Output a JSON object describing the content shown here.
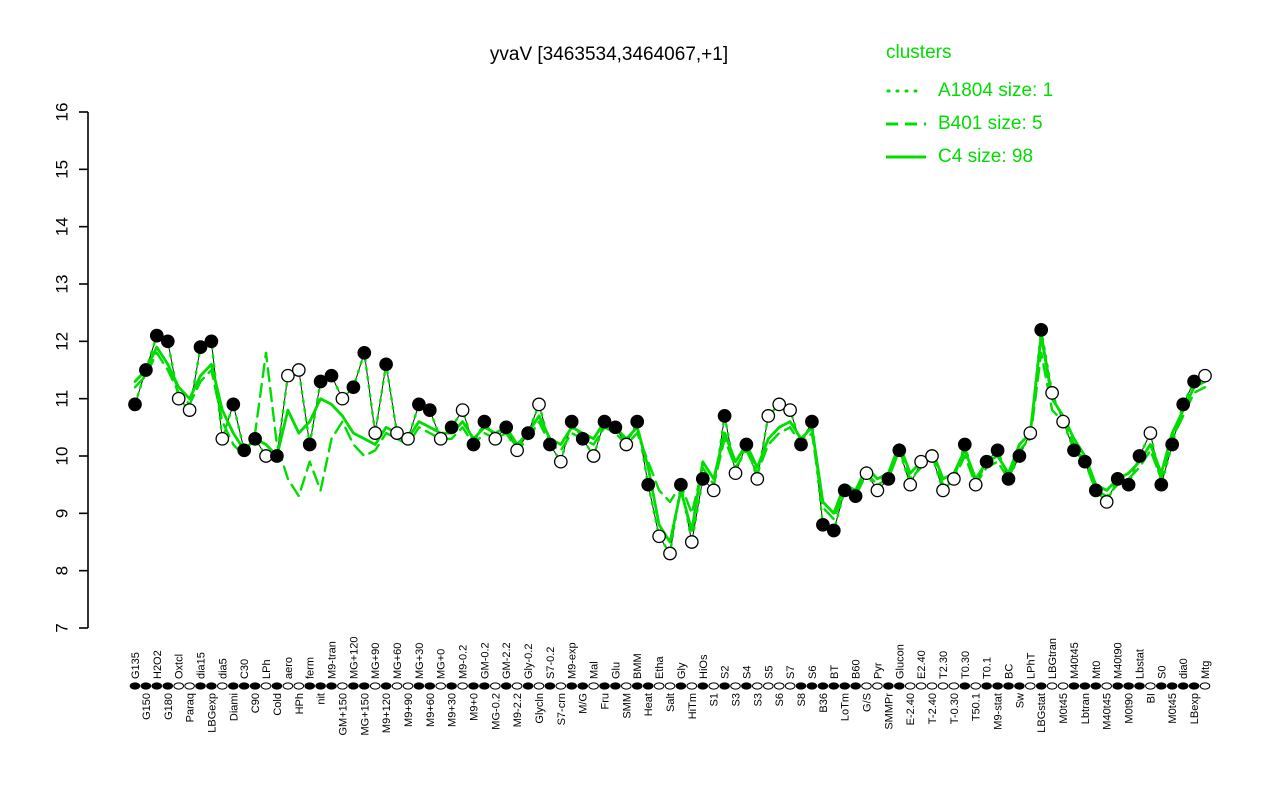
{
  "title": "yvaV [3463534,3464067,+1]",
  "legend": {
    "title": "clusters",
    "entries": [
      {
        "label": "A1804 size: 1",
        "style": "dotted"
      },
      {
        "label": "B401 size: 5",
        "style": "dashed"
      },
      {
        "label": "C4 size: 98",
        "style": "solid"
      }
    ]
  },
  "colors": {
    "green": "#00DD00",
    "point_filled": "#000000",
    "point_open": "#FFFFFF",
    "profile_line": "#161616"
  },
  "chart_data": {
    "type": "line",
    "title": "yvaV [3463534,3464067,+1]",
    "xlabel": "",
    "ylabel": "",
    "ylim": [
      7,
      16
    ],
    "yticks": [
      7,
      8,
      9,
      10,
      11,
      12,
      13,
      14,
      15,
      16
    ],
    "grid": false,
    "legend_position": "topright",
    "categories": [
      "G135",
      "G150",
      "H2O2",
      "G180",
      "Oxtcl",
      "Paraq",
      "dia15",
      "LBGexp",
      "dia5",
      "Diami",
      "C30",
      "C90",
      "LPh",
      "Cold",
      "aero",
      "HPh",
      "ferm",
      "nit",
      "M9-tran",
      "GM+150",
      "MG+120",
      "MG+150",
      "MG+90",
      "M9+120",
      "MG+60",
      "M9+90",
      "MG+30",
      "M9+60",
      "MG+0",
      "M9+30",
      "M9-0.2",
      "M9+0",
      "GM-0.2",
      "MG-0.2",
      "GM-2.2",
      "M9-2.2",
      "Gly-0.2",
      "Glycln",
      "S7-0.2",
      "S7-crn",
      "M9-exp",
      "M/G",
      "Mal",
      "Fru",
      "Glu",
      "SMM",
      "BMM",
      "Heat",
      "Etha",
      "Salt",
      "Gly",
      "HiTm",
      "HiOs",
      "S1",
      "S2",
      "S3",
      "S4",
      "S3",
      "S5",
      "S6",
      "S7",
      "S8",
      "S6",
      "B36",
      "BT",
      "LoTm",
      "B60",
      "G/S",
      "Pyr",
      "SMMPr",
      "Glucon",
      "E-2.40",
      "E2.40",
      "T-2.40",
      "T2.30",
      "T-0.30",
      "T0.30",
      "T50.1",
      "T0.1",
      "M9-stat",
      "BC",
      "Sw",
      "LPhT",
      "LBGstat",
      "LBGtran",
      "M0t45",
      "M40t45",
      "Lbtran",
      "Mt0",
      "M40t45",
      "M40t90",
      "M0t90",
      "Lbstat",
      "BI",
      "S0",
      "M0t45",
      "dia0",
      "LBexp",
      "Mtg"
    ],
    "points": {
      "values": [
        10.9,
        11.5,
        12.1,
        12.0,
        11.0,
        10.8,
        11.9,
        12.0,
        10.3,
        10.9,
        10.1,
        10.3,
        10.0,
        10.0,
        11.4,
        11.5,
        10.2,
        11.3,
        11.4,
        11.0,
        11.2,
        11.8,
        10.4,
        11.6,
        10.4,
        10.3,
        10.9,
        10.8,
        10.3,
        10.5,
        10.8,
        10.2,
        10.6,
        10.3,
        10.5,
        10.1,
        10.4,
        10.9,
        10.2,
        9.9,
        10.6,
        10.3,
        10.0,
        10.6,
        10.5,
        10.2,
        10.6,
        9.5,
        8.6,
        8.3,
        9.5,
        8.5,
        9.6,
        9.4,
        10.7,
        9.7,
        10.2,
        9.6,
        10.7,
        10.9,
        10.8,
        10.2,
        10.6,
        8.8,
        8.7,
        9.4,
        9.3,
        9.7,
        9.4,
        9.6,
        10.1,
        9.5,
        9.9,
        10.0,
        9.4,
        9.6,
        10.2,
        9.5,
        9.9,
        10.1,
        9.6,
        10.0,
        10.4,
        12.2,
        11.1,
        10.6,
        10.1,
        9.9,
        9.4,
        9.2,
        9.6,
        9.5,
        10.0,
        10.4,
        9.5,
        10.2,
        10.9,
        11.3,
        11.4
      ],
      "fills": "kkkkwwkkwkkkwkwwkkkwkkwkwwkkwkwkkwkwkwkwkkwkkwkkwwkwkwkwkwwwwkkkkkkwwkkwwwwwkwkkkkwkwwkkkwkkkwkkkk"
    },
    "series": [
      {
        "name": "A1804",
        "size": 1,
        "style": "dotted",
        "values": [
          10.9,
          11.5,
          12.1,
          12.0,
          11.0,
          10.8,
          11.9,
          12.0,
          10.3,
          10.9,
          10.1,
          10.3,
          10.0,
          10.0,
          11.4,
          11.5,
          10.2,
          11.3,
          11.4,
          11.0,
          11.2,
          11.8,
          10.4,
          11.6,
          10.4,
          10.3,
          10.9,
          10.8,
          10.3,
          10.5,
          10.8,
          10.2,
          10.6,
          10.3,
          10.5,
          10.1,
          10.4,
          10.9,
          10.2,
          9.9,
          10.6,
          10.3,
          10.0,
          10.6,
          10.5,
          10.2,
          10.6,
          9.5,
          8.6,
          8.3,
          9.5,
          8.5,
          9.6,
          9.4,
          10.7,
          9.7,
          10.2,
          9.6,
          10.7,
          10.9,
          10.8,
          10.2,
          10.6,
          8.8,
          8.7,
          9.4,
          9.3,
          9.7,
          9.4,
          9.6,
          10.1,
          9.5,
          9.9,
          10.0,
          9.4,
          9.6,
          10.2,
          9.5,
          9.9,
          10.1,
          9.6,
          10.0,
          10.4,
          12.2,
          11.1,
          10.6,
          10.1,
          9.9,
          9.4,
          9.2,
          9.6,
          9.5,
          10.0,
          10.4,
          9.5,
          10.2,
          10.9,
          11.3,
          11.4
        ]
      },
      {
        "name": "B401",
        "size": 5,
        "style": "dashed",
        "values": [
          11.2,
          11.4,
          11.8,
          11.5,
          11.1,
          10.9,
          11.3,
          11.5,
          10.6,
          10.2,
          10.0,
          10.4,
          11.8,
          10.2,
          9.6,
          9.3,
          9.9,
          9.4,
          10.3,
          10.6,
          10.2,
          10.0,
          10.1,
          10.4,
          10.3,
          10.2,
          10.5,
          10.4,
          10.3,
          10.3,
          10.5,
          10.2,
          10.4,
          10.3,
          10.4,
          10.1,
          10.3,
          10.6,
          10.2,
          10.1,
          10.4,
          10.3,
          10.2,
          10.5,
          10.4,
          10.2,
          10.4,
          9.9,
          9.4,
          9.2,
          9.5,
          9.0,
          9.8,
          9.5,
          10.3,
          9.8,
          10.1,
          9.7,
          10.2,
          10.4,
          10.5,
          10.2,
          10.4,
          9.1,
          8.9,
          9.4,
          9.3,
          9.7,
          9.5,
          9.6,
          10.1,
          9.6,
          9.8,
          10.0,
          9.5,
          9.6,
          10.0,
          9.5,
          9.8,
          9.9,
          9.6,
          10.1,
          10.3,
          11.8,
          10.8,
          10.6,
          10.2,
          9.9,
          9.4,
          9.3,
          9.5,
          9.6,
          9.8,
          10.1,
          9.6,
          10.3,
          10.7,
          11.1,
          11.2
        ]
      },
      {
        "name": "C4",
        "size": 98,
        "style": "solid",
        "values": [
          11.3,
          11.5,
          11.9,
          11.6,
          11.2,
          11.0,
          11.4,
          11.6,
          10.8,
          10.4,
          10.1,
          10.3,
          10.2,
          10.0,
          10.8,
          10.4,
          10.6,
          11.0,
          10.9,
          10.7,
          10.4,
          10.3,
          10.2,
          10.5,
          10.4,
          10.3,
          10.6,
          10.5,
          10.4,
          10.4,
          10.6,
          10.3,
          10.5,
          10.4,
          10.5,
          10.2,
          10.4,
          10.7,
          10.3,
          10.2,
          10.5,
          10.4,
          10.3,
          10.6,
          10.5,
          10.3,
          10.5,
          9.8,
          8.8,
          8.5,
          9.4,
          8.7,
          9.9,
          9.6,
          10.4,
          9.9,
          10.2,
          9.8,
          10.3,
          10.5,
          10.6,
          10.3,
          10.5,
          9.2,
          9.0,
          9.5,
          9.4,
          9.8,
          9.6,
          9.7,
          10.2,
          9.7,
          9.9,
          10.1,
          9.6,
          9.7,
          10.1,
          9.6,
          9.9,
          10.0,
          9.7,
          10.2,
          10.4,
          12.1,
          11.0,
          10.7,
          10.3,
          10.0,
          9.5,
          9.4,
          9.6,
          9.7,
          9.9,
          10.2,
          9.7,
          10.4,
          10.8,
          11.2,
          11.3
        ]
      }
    ]
  }
}
